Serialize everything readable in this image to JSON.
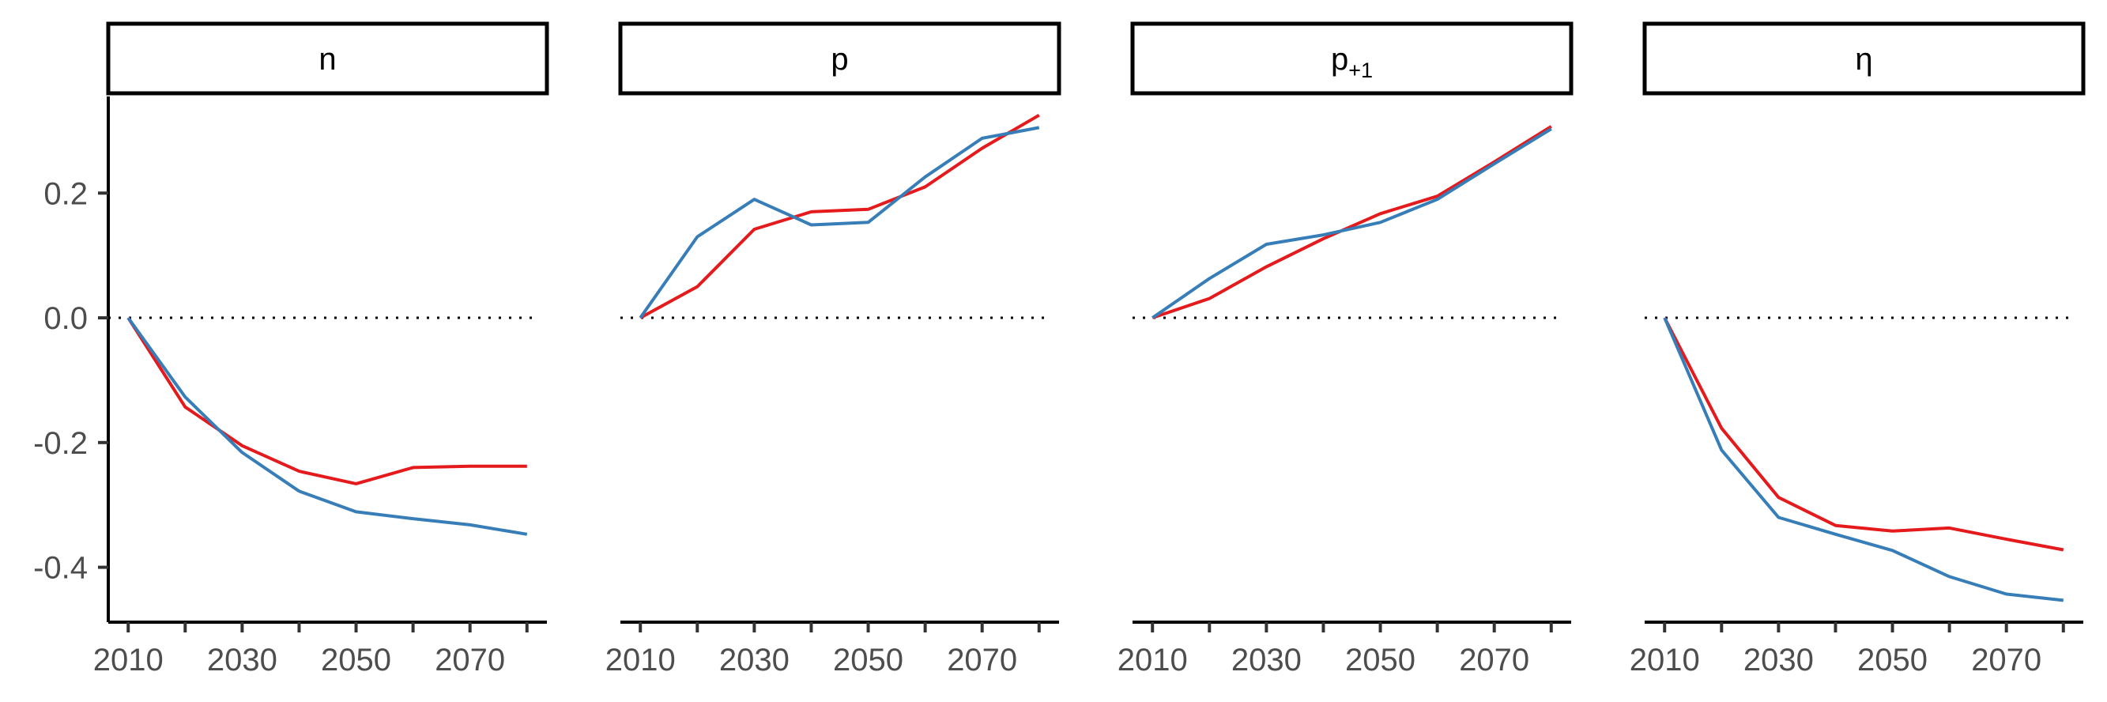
{
  "chart_data": {
    "type": "line",
    "layout": "facets-1x4",
    "panels": [
      {
        "strip": "n",
        "strip_subscript": "",
        "series": [
          {
            "color": "#e41a1c",
            "x": [
              2010,
              2020,
              2030,
              2040,
              2050,
              2060,
              2070,
              2080
            ],
            "y": [
              0.0,
              -0.143,
              -0.205,
              -0.246,
              -0.266,
              -0.24,
              -0.238,
              -0.238
            ]
          },
          {
            "color": "#377eb8",
            "x": [
              2010,
              2020,
              2030,
              2040,
              2050,
              2060,
              2070,
              2080
            ],
            "y": [
              0.0,
              -0.127,
              -0.216,
              -0.278,
              -0.311,
              -0.322,
              -0.332,
              -0.347
            ]
          }
        ]
      },
      {
        "strip": "p",
        "strip_subscript": "",
        "series": [
          {
            "color": "#e41a1c",
            "x": [
              2010,
              2020,
              2030,
              2040,
              2050,
              2060,
              2070,
              2080
            ],
            "y": [
              0.0,
              0.05,
              0.142,
              0.17,
              0.174,
              0.21,
              0.272,
              0.325
            ]
          },
          {
            "color": "#377eb8",
            "x": [
              2010,
              2020,
              2030,
              2040,
              2050,
              2060,
              2070,
              2080
            ],
            "y": [
              0.0,
              0.13,
              0.19,
              0.149,
              0.153,
              0.226,
              0.288,
              0.305
            ]
          }
        ]
      },
      {
        "strip": "p",
        "strip_subscript": "+1",
        "series": [
          {
            "color": "#e41a1c",
            "x": [
              2010,
              2020,
              2030,
              2040,
              2050,
              2060,
              2070,
              2080
            ],
            "y": [
              0.0,
              0.031,
              0.082,
              0.127,
              0.167,
              0.195,
              0.25,
              0.307
            ]
          },
          {
            "color": "#377eb8",
            "x": [
              2010,
              2020,
              2030,
              2040,
              2050,
              2060,
              2070,
              2080
            ],
            "y": [
              0.0,
              0.063,
              0.118,
              0.133,
              0.153,
              0.19,
              0.247,
              0.303
            ]
          }
        ]
      },
      {
        "strip": "η",
        "strip_subscript": "",
        "series": [
          {
            "color": "#e41a1c",
            "x": [
              2010,
              2020,
              2030,
              2040,
              2050,
              2060,
              2070,
              2080
            ],
            "y": [
              0.0,
              -0.177,
              -0.288,
              -0.333,
              -0.342,
              -0.337,
              -0.355,
              -0.372
            ]
          },
          {
            "color": "#377eb8",
            "x": [
              2010,
              2020,
              2030,
              2040,
              2050,
              2060,
              2070,
              2080
            ],
            "y": [
              0.0,
              -0.212,
              -0.32,
              -0.347,
              -0.373,
              -0.415,
              -0.443,
              -0.453
            ]
          }
        ]
      }
    ],
    "x_ticks": [
      2010,
      2020,
      2030,
      2040,
      2050,
      2060,
      2070,
      2080
    ],
    "x_tick_labels": [
      "2010",
      "2030",
      "2050",
      "2070"
    ],
    "y_ticks": [
      0.2,
      0.0,
      -0.2,
      -0.4
    ],
    "y_tick_labels": [
      "0.2",
      "0.0",
      "-0.2",
      "-0.4"
    ],
    "xlim": [
      2006.5,
      2083.5
    ],
    "ylim": [
      -0.488,
      0.355
    ],
    "reference_line": {
      "y": 0,
      "style": "dotted"
    },
    "grid": false,
    "title": "",
    "xlabel": "",
    "ylabel": ""
  }
}
